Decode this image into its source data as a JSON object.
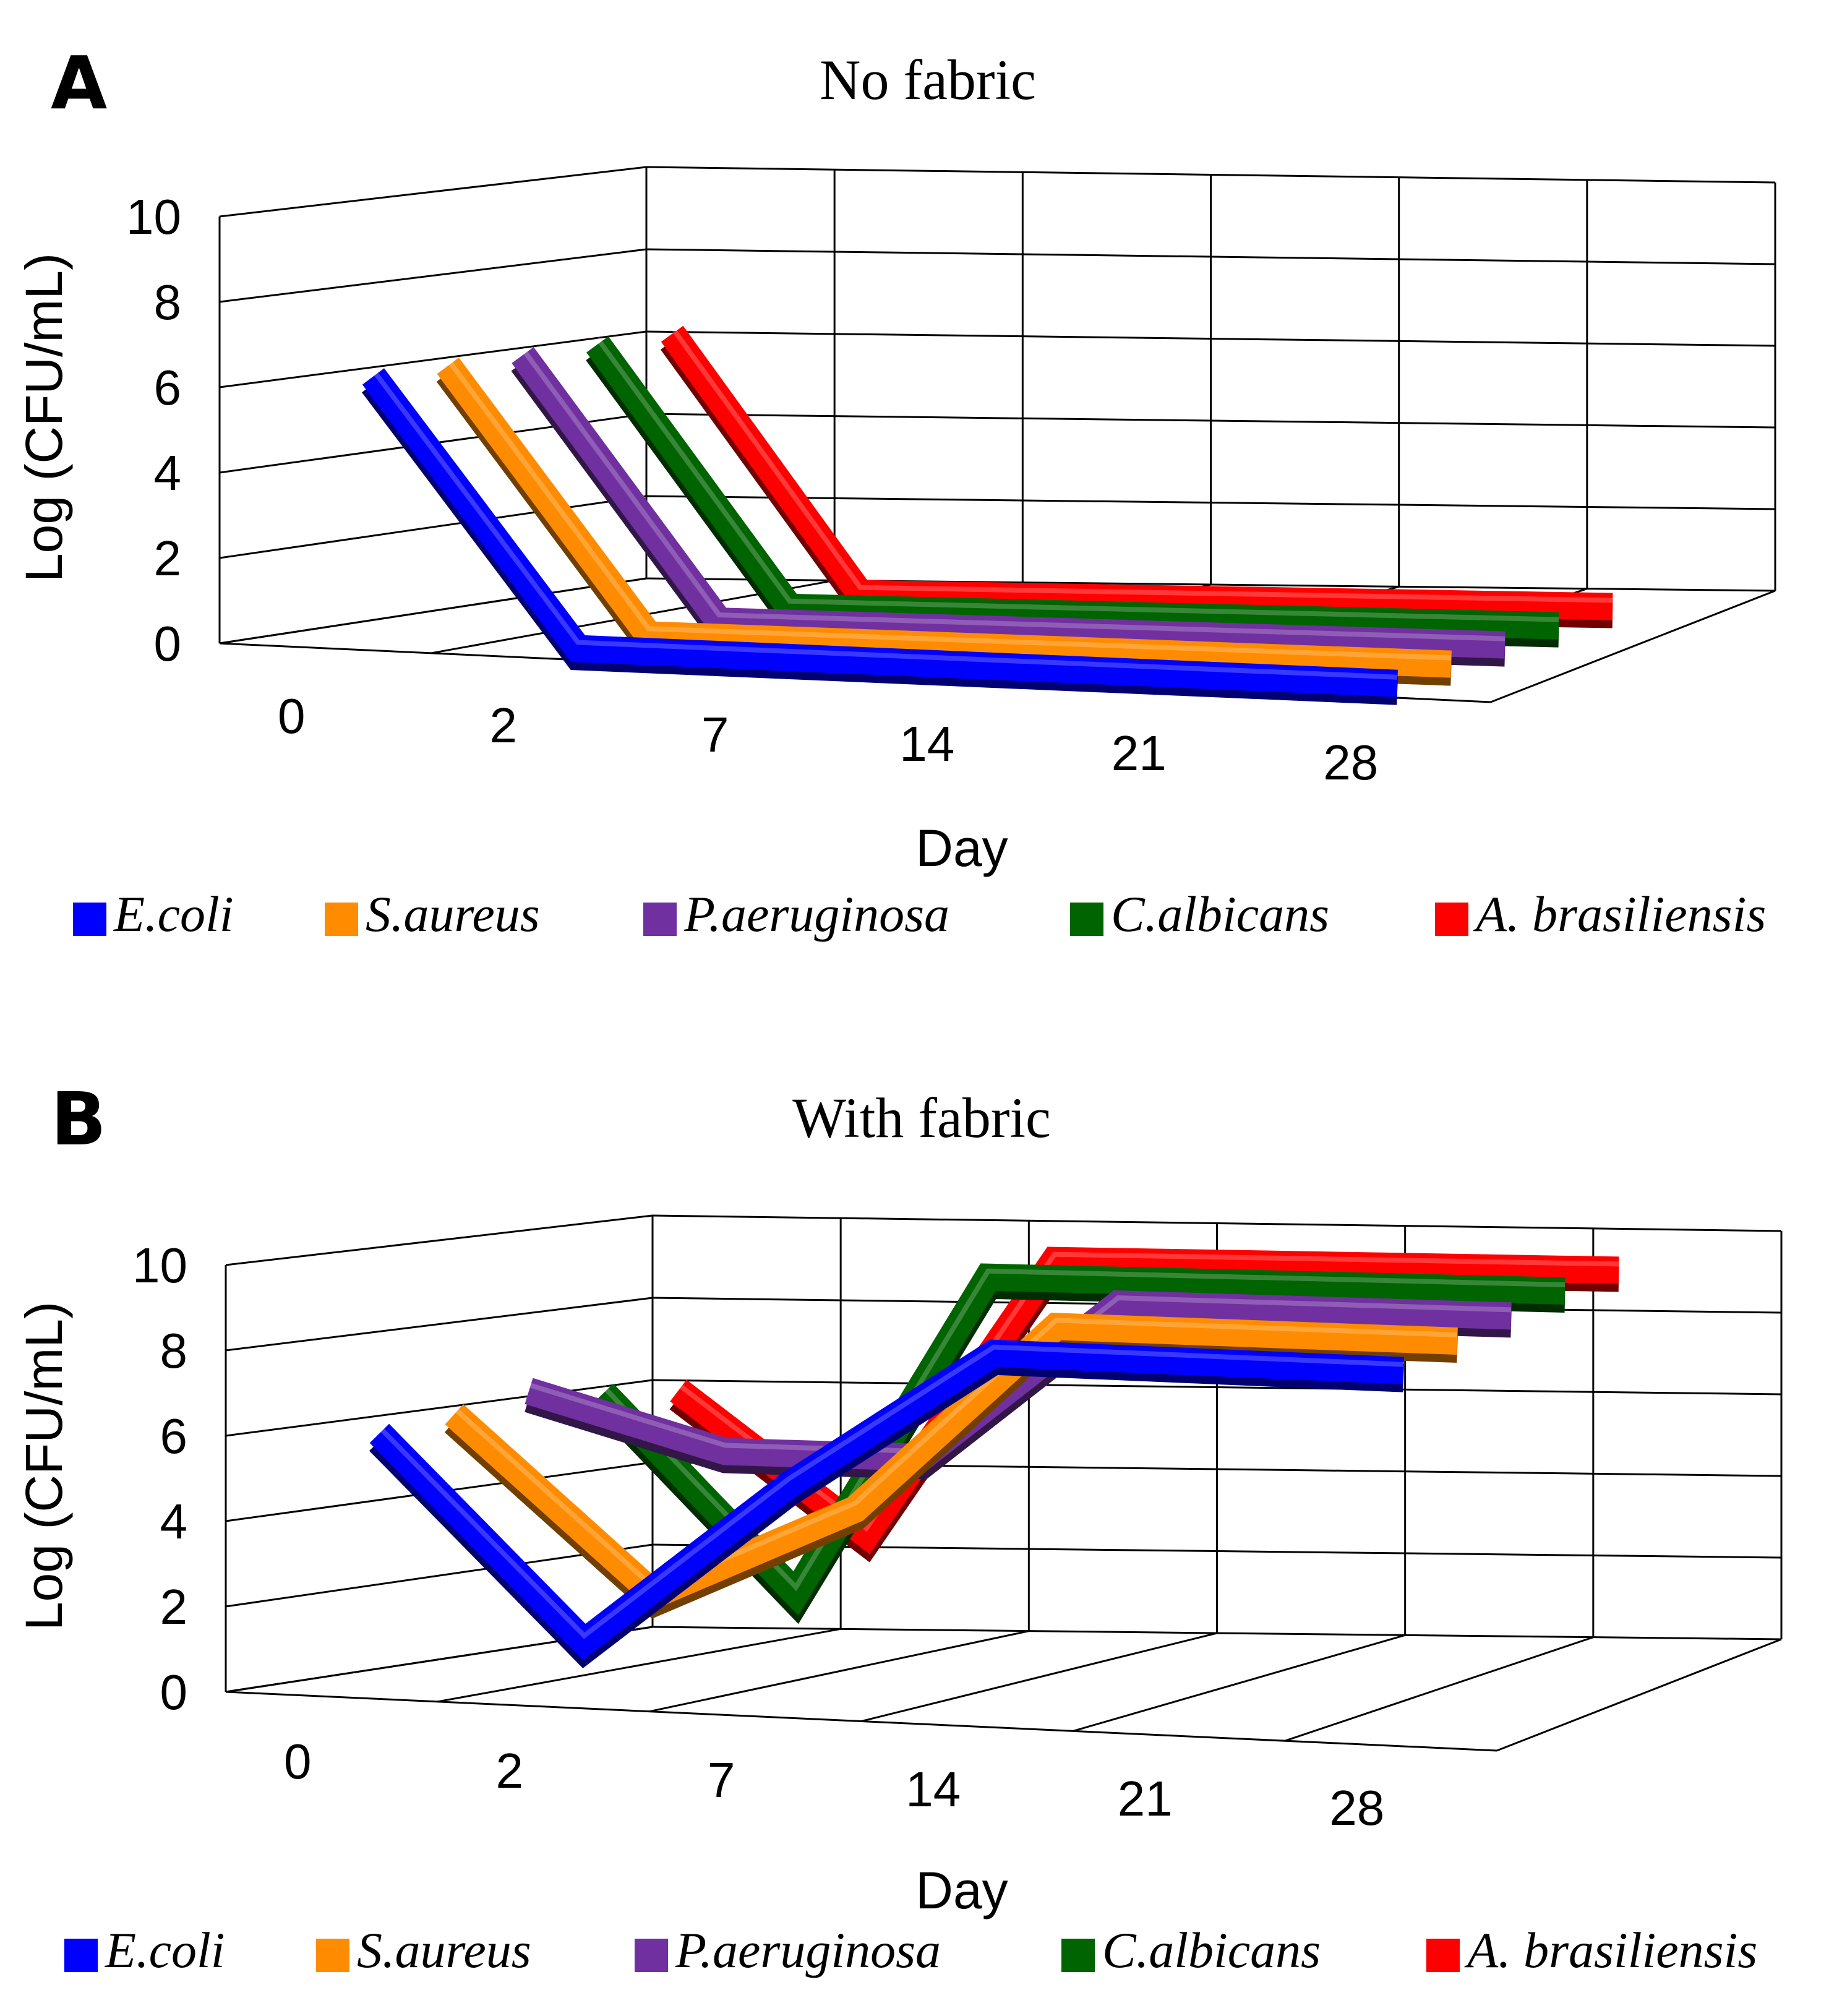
{
  "chart_data": [
    {
      "type": "line",
      "panel_label": "A",
      "title": "No fabric",
      "xlabel": "Day",
      "ylabel": "Log (CFU/mL)",
      "ylim": [
        0,
        10
      ],
      "yticks": [
        "0",
        "2",
        "4",
        "6",
        "8",
        "10"
      ],
      "categories": [
        "0",
        "2",
        "7",
        "14",
        "21",
        "28"
      ],
      "grid": true,
      "legend_position": "bottom",
      "series": [
        {
          "name": "E.coli",
          "color": "#0000ff",
          "values": [
            6.2,
            0,
            0,
            0,
            0,
            0
          ]
        },
        {
          "name": "S.aureus",
          "color": "#ff8c00",
          "values": [
            6.2,
            0,
            0,
            0,
            0,
            0
          ]
        },
        {
          "name": "P.aeruginosa",
          "color": "#7030a0",
          "values": [
            6.2,
            0,
            0,
            0,
            0,
            0
          ]
        },
        {
          "name": "C.albicans",
          "color": "#006400",
          "values": [
            6.2,
            0,
            0,
            0,
            0,
            0
          ]
        },
        {
          "name": "A. brasiliensis",
          "color": "#ff0000",
          "values": [
            6.2,
            0,
            0,
            0,
            0,
            0
          ]
        }
      ]
    },
    {
      "type": "line",
      "panel_label": "B",
      "title": "With fabric",
      "xlabel": "Day",
      "ylabel": "Log (CFU/mL)",
      "ylim": [
        0,
        10
      ],
      "yticks": [
        "0",
        "2",
        "4",
        "6",
        "8",
        "10"
      ],
      "categories": [
        "0",
        "2",
        "7",
        "14",
        "21",
        "28"
      ],
      "grid": true,
      "legend_position": "bottom",
      "series": [
        {
          "name": "E.coli",
          "color": "#0000ff",
          "values": [
            6.0,
            1.3,
            5.2,
            8.5,
            8.5,
            8.5
          ]
        },
        {
          "name": "S.aureus",
          "color": "#ff8c00",
          "values": [
            6.2,
            2.1,
            4.3,
            8.8,
            8.8,
            8.8
          ]
        },
        {
          "name": "P.aeruginosa",
          "color": "#7030a0",
          "values": [
            6.5,
            5.2,
            5.2,
            9.0,
            9.0,
            9.0
          ]
        },
        {
          "name": "C.albicans",
          "color": "#006400",
          "values": [
            6.2,
            1.5,
            9.2,
            9.2,
            9.2,
            9.2
          ]
        },
        {
          "name": "A. brasiliensis",
          "color": "#ff0000",
          "values": [
            6.0,
            2.6,
            9.3,
            9.3,
            9.3,
            9.3
          ]
        }
      ]
    }
  ]
}
